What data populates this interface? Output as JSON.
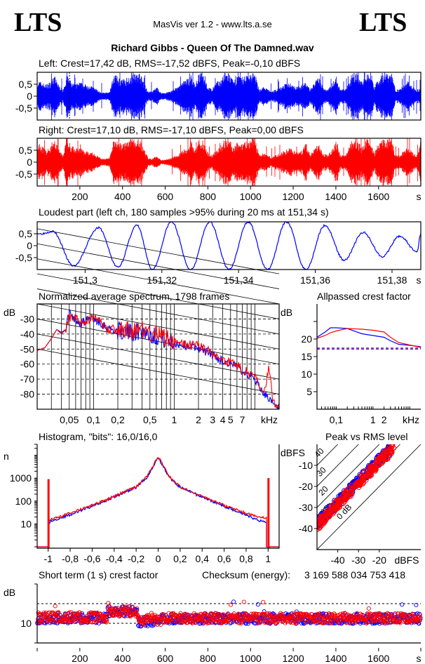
{
  "header": {
    "logo_left": "LTS",
    "logo_right": "LTS",
    "app_title": "MasVis ver 1.2 - www.lts.a.se",
    "file_title": "Richard Gibbs - Queen Of The Damned.wav"
  },
  "colors": {
    "left": "#0000ff",
    "right": "#ff0000",
    "axis": "#000000"
  },
  "chart_data": [
    {
      "id": "left-waveform",
      "type": "area",
      "title": "Left: Crest=17,42 dB, RMS=-17,52 dBFS, Peak=-0,10 dBFS",
      "series": [
        {
          "name": "Left",
          "color": "#0000ff"
        }
      ],
      "xlim": [
        0,
        1798
      ],
      "ylim": [
        -1,
        1
      ],
      "yticks": [
        0.5,
        0,
        -0.5
      ],
      "ytick_labels": [
        "0,5",
        "0",
        "-0,5"
      ],
      "marker_time_s": 151.34,
      "envelope_x": [
        0,
        20,
        40,
        60,
        80,
        100,
        120,
        140,
        160,
        180,
        200,
        220,
        240,
        260,
        280,
        300,
        320,
        340,
        360,
        380,
        400,
        420,
        440,
        460,
        480,
        500,
        520,
        540,
        560,
        580,
        600,
        620,
        640,
        660,
        680,
        700,
        720,
        740,
        760,
        780,
        800,
        820,
        840,
        860,
        880,
        900,
        920,
        940,
        960,
        980,
        1000,
        1020,
        1040,
        1060,
        1080,
        1100,
        1120,
        1140,
        1160,
        1180,
        1200,
        1220,
        1240,
        1260,
        1280,
        1300,
        1320,
        1340,
        1360,
        1380,
        1400,
        1420,
        1440,
        1460,
        1480,
        1500,
        1520,
        1540,
        1560,
        1580,
        1600,
        1620,
        1640,
        1660,
        1680,
        1700,
        1720,
        1740,
        1760,
        1780,
        1798
      ],
      "envelope": [
        0.7,
        0.6,
        0.5,
        0.6,
        0.9,
        0.5,
        0.3,
        0.9,
        0.6,
        0.5,
        0.6,
        0.5,
        0.5,
        0.4,
        0.3,
        0.15,
        0.15,
        0.2,
        0.95,
        0.8,
        0.7,
        0.8,
        0.9,
        0.95,
        1.0,
        0.6,
        0.2,
        0.2,
        0.4,
        0.15,
        0.15,
        0.2,
        0.3,
        0.4,
        0.6,
        0.7,
        0.9,
        0.5,
        1.0,
        0.9,
        0.4,
        0.3,
        0.6,
        0.7,
        1.0,
        1.0,
        0.6,
        0.9,
        0.8,
        0.9,
        1.0,
        1.0,
        0.3,
        0.4,
        0.3,
        0.2,
        0.3,
        0.4,
        0.5,
        0.6,
        0.5,
        0.4,
        0.5,
        0.6,
        0.3,
        0.6,
        0.8,
        0.4,
        0.3,
        0.5,
        0.9,
        0.3,
        0.3,
        0.5,
        1.0,
        1.0,
        0.6,
        1.0,
        1.0,
        0.4,
        0.8,
        0.9,
        1.0,
        1.0,
        0.3,
        0.3,
        0.5,
        0.7,
        0.4,
        0.3,
        0.3
      ]
    },
    {
      "id": "right-waveform",
      "type": "area",
      "title": "Right: Crest=17,10 dB, RMS=-17,10 dBFS, Peak=0,00 dBFS",
      "series": [
        {
          "name": "Right",
          "color": "#ff0000"
        }
      ],
      "xlim": [
        0,
        1798
      ],
      "ylim": [
        -1,
        1
      ],
      "yticks": [
        0.5,
        0,
        -0.5
      ],
      "ytick_labels": [
        "0,5",
        "0",
        "-0,5"
      ],
      "xticks": [
        200,
        400,
        600,
        800,
        1000,
        1200,
        1400,
        1600
      ],
      "xtick_labels": [
        "200",
        "400",
        "600",
        "800",
        "1000",
        "1200",
        "1400",
        "1600"
      ],
      "xunit": "s",
      "envelope_x": [
        0,
        20,
        40,
        60,
        80,
        100,
        120,
        140,
        160,
        180,
        200,
        220,
        240,
        260,
        280,
        300,
        320,
        340,
        360,
        380,
        400,
        420,
        440,
        460,
        480,
        500,
        520,
        540,
        560,
        580,
        600,
        620,
        640,
        660,
        680,
        700,
        720,
        740,
        760,
        780,
        800,
        820,
        840,
        860,
        880,
        900,
        920,
        940,
        960,
        980,
        1000,
        1020,
        1040,
        1060,
        1080,
        1100,
        1120,
        1140,
        1160,
        1180,
        1200,
        1220,
        1240,
        1260,
        1280,
        1300,
        1320,
        1340,
        1360,
        1380,
        1400,
        1420,
        1440,
        1460,
        1480,
        1500,
        1520,
        1540,
        1560,
        1580,
        1600,
        1620,
        1640,
        1660,
        1680,
        1700,
        1720,
        1740,
        1760,
        1780,
        1798
      ],
      "envelope": [
        1.0,
        0.7,
        0.5,
        0.6,
        1.0,
        0.6,
        0.3,
        1.0,
        0.7,
        0.6,
        0.6,
        0.5,
        0.5,
        0.4,
        0.3,
        0.15,
        0.15,
        0.2,
        1.0,
        0.9,
        0.8,
        0.9,
        1.0,
        0.95,
        1.0,
        0.6,
        0.2,
        0.15,
        0.3,
        0.1,
        0.1,
        0.15,
        0.25,
        0.3,
        0.5,
        0.6,
        0.9,
        0.5,
        1.0,
        0.9,
        0.4,
        0.3,
        0.5,
        0.7,
        1.0,
        1.0,
        0.6,
        0.9,
        0.8,
        0.9,
        1.0,
        1.0,
        0.3,
        0.4,
        0.3,
        0.2,
        0.3,
        0.4,
        0.5,
        0.7,
        0.5,
        0.4,
        0.5,
        0.8,
        0.3,
        0.6,
        0.8,
        0.4,
        0.3,
        0.5,
        0.9,
        0.3,
        0.3,
        0.6,
        1.0,
        1.0,
        0.6,
        1.0,
        1.0,
        0.4,
        0.8,
        1.0,
        1.0,
        1.0,
        0.3,
        0.3,
        0.5,
        0.7,
        0.4,
        0.3,
        1.0
      ]
    },
    {
      "id": "loudest-part",
      "type": "line",
      "title": "Loudest part (left  ch, 180 samples >95% during 20 ms at 151,34 s)",
      "series": [
        {
          "name": "Left",
          "color": "#0000ff"
        }
      ],
      "xlim": [
        151.2875,
        151.3875
      ],
      "ylim": [
        -1,
        1
      ],
      "yticks": [
        0.5,
        0,
        -0.5
      ],
      "ytick_labels": [
        "0,5",
        "0",
        "-0,5"
      ],
      "xticks": [
        151.3,
        151.32,
        151.34,
        151.36,
        151.38
      ],
      "xtick_labels": [
        "151,3",
        "151,32",
        "151,34",
        "151,36",
        "151,38"
      ],
      "xunit": "s",
      "peaks_x": [
        151.2885,
        151.2915,
        151.297,
        151.3035,
        151.3085,
        151.3135,
        151.3175,
        151.3225,
        151.3275,
        151.3325,
        151.3375,
        151.3425,
        151.3475,
        151.3525,
        151.3575,
        151.3625,
        151.3675,
        151.3725,
        151.3775,
        151.382,
        151.3865,
        151.3875
      ],
      "peaks_y": [
        0.5,
        0.6,
        -0.85,
        0.75,
        -0.9,
        0.85,
        -1.0,
        1.0,
        -1.0,
        1.0,
        -1.0,
        1.0,
        -1.0,
        1.0,
        -1.0,
        0.85,
        -0.6,
        0.55,
        -0.45,
        0.4,
        -0.25,
        0.5
      ]
    },
    {
      "id": "avg-spectrum",
      "type": "line",
      "title": "Normalized average spectrum, 1798 frames",
      "ylabel": "dB",
      "xunit": "kHz",
      "xscale": "log",
      "xlim": [
        0.02,
        20
      ],
      "ylim": [
        -90,
        -20
      ],
      "yticks": [
        -30,
        -40,
        -50,
        -60,
        -70,
        -80
      ],
      "ytick_labels": [
        "-30",
        "-40",
        "-50",
        "-60",
        "-70",
        "-80"
      ],
      "xticks": [
        0.05,
        0.1,
        0.2,
        0.5,
        1,
        2,
        3,
        4,
        5,
        7
      ],
      "xtick_labels": [
        "0,05",
        "0,1",
        "0,2",
        "0,5",
        "1",
        "2",
        "3",
        "4",
        "5",
        "7"
      ],
      "series": [
        {
          "name": "Left",
          "color": "#0000ff",
          "x": [
            0.02,
            0.025,
            0.03,
            0.035,
            0.04,
            0.045,
            0.05,
            0.055,
            0.06,
            0.07,
            0.08,
            0.1,
            0.12,
            0.15,
            0.2,
            0.3,
            0.4,
            0.5,
            0.7,
            1,
            1.5,
            2,
            3,
            4,
            5,
            7,
            10,
            13,
            15,
            17,
            20
          ],
          "y": [
            -51,
            -49,
            -43,
            -37,
            -39,
            -37,
            -25,
            -30,
            -30,
            -33,
            -31,
            -30,
            -32,
            -36,
            -38,
            -39,
            -38,
            -40,
            -43,
            -46,
            -48,
            -49,
            -54,
            -58,
            -60,
            -64,
            -70,
            -80,
            -82,
            -88,
            -90
          ]
        },
        {
          "name": "Right",
          "color": "#ff0000",
          "x": [
            0.02,
            0.025,
            0.03,
            0.035,
            0.04,
            0.045,
            0.05,
            0.055,
            0.06,
            0.07,
            0.08,
            0.1,
            0.12,
            0.15,
            0.2,
            0.3,
            0.4,
            0.5,
            0.7,
            1,
            1.5,
            2,
            3,
            4,
            5,
            7,
            10,
            13,
            15,
            17,
            20
          ],
          "y": [
            -51,
            -49,
            -43,
            -37,
            -40,
            -37,
            -28,
            -31,
            -28,
            -33,
            -31,
            -29,
            -32,
            -37,
            -37,
            -38,
            -37,
            -39,
            -42,
            -45,
            -47,
            -48,
            -53,
            -57,
            -59,
            -63,
            -69,
            -78,
            -62,
            -86,
            -90
          ]
        }
      ]
    },
    {
      "id": "allpassed-crest",
      "type": "line",
      "title": "Allpassed crest factor",
      "ylabel": "dB",
      "xunit": "kHz",
      "xscale": "log",
      "xlim": [
        0.03,
        20
      ],
      "ylim": [
        0,
        30
      ],
      "yticks": [
        5,
        10,
        15,
        20,
        25
      ],
      "ytick_labels": [
        "5",
        "10",
        "15",
        "20",
        ""
      ],
      "xticks": [
        0.1,
        1,
        2
      ],
      "xtick_labels": [
        "0,1",
        "1",
        "2"
      ],
      "series": [
        {
          "name": "Left",
          "color": "#0000ff",
          "x": [
            0.03,
            0.05,
            0.07,
            0.1,
            0.2,
            0.5,
            1,
            2,
            3,
            5,
            10,
            20
          ],
          "y": [
            20.5,
            22,
            23.2,
            23.2,
            23,
            21.5,
            21,
            20.5,
            19.5,
            18.5,
            18.2,
            17.8
          ],
          "overall": 17.4
        },
        {
          "name": "Right",
          "color": "#ff0000",
          "x": [
            0.03,
            0.05,
            0.07,
            0.1,
            0.2,
            0.5,
            1,
            2,
            3,
            5,
            10,
            20
          ],
          "y": [
            20.2,
            21,
            21.8,
            22.3,
            23,
            22.8,
            22.5,
            22,
            20.5,
            19,
            18.3,
            17.6
          ],
          "overall": 17.1
        }
      ]
    },
    {
      "id": "histogram",
      "type": "line",
      "title": "Histogram, \"bits\": 16,0/16,0",
      "ylabel": "n",
      "yscale": "log",
      "xlim": [
        -1.1,
        1.1
      ],
      "ylim": [
        1,
        30000
      ],
      "yticks": [
        10,
        100,
        1000
      ],
      "ytick_labels": [
        "10",
        "100",
        "1000"
      ],
      "xticks": [
        -1,
        -0.8,
        -0.6,
        -0.4,
        -0.2,
        0,
        0.2,
        0.4,
        0.6,
        0.8,
        1
      ],
      "xtick_labels": [
        "-1",
        "-0,8",
        "-0,6",
        "-0,4",
        "-0,2",
        "0",
        "0,2",
        "0,4",
        "0,6",
        "0,8",
        "1"
      ],
      "series": [
        {
          "name": "Left",
          "color": "#0000ff",
          "x": [
            -0.99,
            -0.9,
            -0.8,
            -0.6,
            -0.4,
            -0.2,
            -0.1,
            0,
            0.1,
            0.2,
            0.4,
            0.6,
            0.8,
            0.9,
            0.99
          ],
          "y": [
            12,
            18,
            25,
            60,
            150,
            400,
            1100,
            8000,
            1100,
            400,
            150,
            60,
            25,
            15,
            12
          ]
        },
        {
          "name": "Right",
          "color": "#ff0000",
          "x": [
            -0.99,
            -0.9,
            -0.8,
            -0.6,
            -0.4,
            -0.2,
            -0.1,
            0,
            0.1,
            0.2,
            0.4,
            0.6,
            0.8,
            0.9,
            0.99
          ],
          "y": [
            16,
            20,
            30,
            65,
            160,
            420,
            1200,
            9000,
            1200,
            420,
            160,
            65,
            30,
            22,
            18
          ]
        }
      ],
      "clip_spikes": [
        {
          "x": -1,
          "n": 900
        },
        {
          "x": 1,
          "n": 1000
        }
      ]
    },
    {
      "id": "peak-vs-rms",
      "type": "scatter",
      "title": "Peak vs RMS level",
      "xlabel": "dBFS",
      "ylabel": "dBFS",
      "xlim": [
        -50,
        0
      ],
      "ylim": [
        -50,
        0
      ],
      "xticks": [
        -40,
        -30,
        -20
      ],
      "xtick_labels": [
        "-40",
        "-30",
        "-20"
      ],
      "yticks": [
        -10,
        -20,
        -30,
        -40
      ],
      "ytick_labels": [
        "-10",
        "-20",
        "-30",
        "-40"
      ],
      "diagonal_labels": [
        "0 dB",
        "10",
        "20",
        "30",
        "40"
      ],
      "series": [
        {
          "name": "Left",
          "color": "#0000ff",
          "cluster": {
            "rms_range": [
              -50,
              -15
            ],
            "crest_mean": 12.5,
            "crest_spread": 2.5
          }
        },
        {
          "name": "Right",
          "color": "#ff0000",
          "cluster": {
            "rms_range": [
              -50,
              -13
            ],
            "crest_mean": 11.5,
            "crest_spread": 2.5
          }
        }
      ]
    },
    {
      "id": "short-term-crest",
      "type": "scatter",
      "title": "Short term (1 s) crest factor",
      "ylabel": "dB",
      "xlim": [
        0,
        1798
      ],
      "ylim": [
        5,
        20
      ],
      "yticks": [
        10
      ],
      "ytick_labels": [
        "10"
      ],
      "dashed_levels": [
        10,
        15
      ],
      "xticks": [
        200,
        400,
        600,
        800,
        1000,
        1200,
        1400,
        1600
      ],
      "xtick_labels": [
        "200",
        "400",
        "600",
        "800",
        "1000",
        "1200",
        "1400",
        "1600"
      ],
      "xunit": "s",
      "series": [
        {
          "name": "Left",
          "color": "#0000ff",
          "segments": [
            {
              "from": 0,
              "to": 330,
              "mean": 11.3
            },
            {
              "from": 330,
              "to": 470,
              "mean": 13
            },
            {
              "from": 470,
              "to": 580,
              "mean": 10.5
            },
            {
              "from": 580,
              "to": 1798,
              "mean": 11.2
            }
          ]
        },
        {
          "name": "Right",
          "color": "#ff0000",
          "segments": [
            {
              "from": 0,
              "to": 330,
              "mean": 11.5
            },
            {
              "from": 330,
              "to": 470,
              "mean": 13
            },
            {
              "from": 470,
              "to": 580,
              "mean": 10.8
            },
            {
              "from": 580,
              "to": 1798,
              "mean": 11.3
            }
          ]
        }
      ]
    }
  ],
  "checksum": {
    "label": "Checksum (energy):",
    "value": "3 169 588 034 753 418"
  }
}
